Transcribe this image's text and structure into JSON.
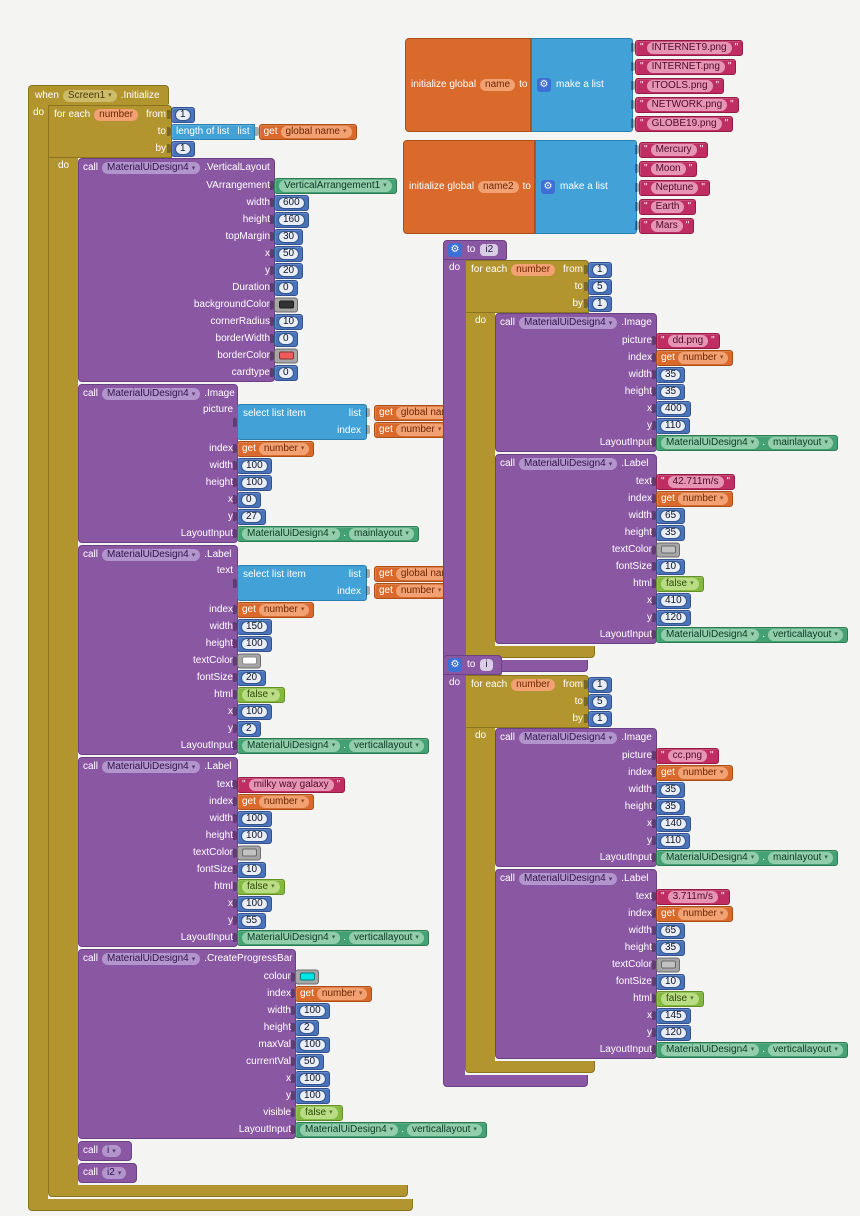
{
  "kw": {
    "when": "when",
    "do": "do",
    "call": "call",
    "to": "to",
    "by": "by",
    "from": "from",
    "for_each": "for each",
    "initialize_global": "initialize global",
    "make_a_list": "make a list",
    "length_of_list": "length of list",
    "list": "list",
    "select_list_item": "select list item",
    "index": "index",
    "get": "get",
    "dot": ".",
    "quote": "\"",
    "gear": "⚙"
  },
  "colors": {
    "gold": "#b2952f",
    "purple": "#8a57a3",
    "lists_blue": "#42a1d7",
    "math_blue": "#4a73bc",
    "text_magenta": "#c02d62",
    "vars_orange": "#d96a2c",
    "logic_green": "#84b940",
    "component_green": "#43a173",
    "gear_blue": "#3d6fd5",
    "swatch_background": "#333333",
    "swatch_border": "#f05c5c",
    "swatch_white": "#ffffff",
    "swatch_gray": "#c2c2c2",
    "swatch_cyan": "#00e5e5"
  },
  "globals": [
    {
      "name": "name",
      "items": [
        "INTERNET9.png",
        "INTERNET.png",
        "ITOOLS.png",
        "NETWORK.png",
        "GLOBE19.png"
      ]
    },
    {
      "name": "name2",
      "items": [
        "Mercury",
        "Moon",
        "Neptune",
        "Earth",
        "Mars"
      ]
    }
  ],
  "when_block": {
    "component": "Screen1",
    "event": ".Initialize",
    "foreach": {
      "var": "number",
      "from": "1",
      "by": "1",
      "to_list_var": "global name"
    }
  },
  "procs": [
    {
      "name": "i2",
      "foreach": {
        "var": "number",
        "from": "1",
        "to": "5",
        "by": "1"
      }
    },
    {
      "name": "i",
      "foreach": {
        "var": "number",
        "from": "1",
        "to": "5",
        "by": "1"
      }
    }
  ],
  "calls": {
    "c1": {
      "component": "MaterialUiDesign4",
      "method": ".VerticalLayout",
      "params": [
        {
          "label": "VArrangement",
          "type": "comp",
          "v": "VerticalArrangement1"
        },
        {
          "label": "width",
          "type": "num",
          "v": "600"
        },
        {
          "label": "height",
          "type": "num",
          "v": "160"
        },
        {
          "label": "topMargin",
          "type": "num",
          "v": "30"
        },
        {
          "label": "x",
          "type": "num",
          "v": "50"
        },
        {
          "label": "y",
          "type": "num",
          "v": "20"
        },
        {
          "label": "Duration",
          "type": "num",
          "v": "0"
        },
        {
          "label": "backgroundColor",
          "type": "swatch",
          "v": "#333333"
        },
        {
          "label": "cornerRadius",
          "type": "num",
          "v": "10"
        },
        {
          "label": "borderWidth",
          "type": "num",
          "v": "0"
        },
        {
          "label": "borderColor",
          "type": "swatch",
          "v": "#f05c5c"
        },
        {
          "label": "cardtype",
          "type": "num",
          "v": "0"
        }
      ]
    },
    "c2": {
      "component": "MaterialUiDesign4",
      "method": ".Image",
      "params": [
        {
          "label": "picture",
          "type": "selectlist",
          "list_var": "global name",
          "index_var": "number"
        },
        {
          "label": "index",
          "type": "get",
          "v": "number"
        },
        {
          "label": "width",
          "type": "num",
          "v": "100"
        },
        {
          "label": "height",
          "type": "num",
          "v": "100"
        },
        {
          "label": "x",
          "type": "num",
          "v": "0"
        },
        {
          "label": "y",
          "type": "num",
          "v": "27"
        },
        {
          "label": "LayoutInput",
          "type": "layout",
          "a": "MaterialUiDesign4",
          "b": "mainlayout"
        }
      ]
    },
    "c3": {
      "component": "MaterialUiDesign4",
      "method": ".Label",
      "params": [
        {
          "label": "text",
          "type": "selectlist",
          "list_var": "global name2",
          "index_var": "number"
        },
        {
          "label": "index",
          "type": "get",
          "v": "number"
        },
        {
          "label": "width",
          "type": "num",
          "v": "150"
        },
        {
          "label": "height",
          "type": "num",
          "v": "100"
        },
        {
          "label": "textColor",
          "type": "swatch",
          "v": "#ffffff"
        },
        {
          "label": "fontSize",
          "type": "num",
          "v": "20"
        },
        {
          "label": "html",
          "type": "logic",
          "v": "false"
        },
        {
          "label": "x",
          "type": "num",
          "v": "100"
        },
        {
          "label": "y",
          "type": "num",
          "v": "2"
        },
        {
          "label": "LayoutInput",
          "type": "layout",
          "a": "MaterialUiDesign4",
          "b": "verticallayout"
        }
      ]
    },
    "c4": {
      "component": "MaterialUiDesign4",
      "method": ".Label",
      "params": [
        {
          "label": "text",
          "type": "str",
          "v": "milky way galaxy"
        },
        {
          "label": "index",
          "type": "get",
          "v": "number"
        },
        {
          "label": "width",
          "type": "num",
          "v": "100"
        },
        {
          "label": "height",
          "type": "num",
          "v": "100"
        },
        {
          "label": "textColor",
          "type": "swatch",
          "v": "#c2c2c2"
        },
        {
          "label": "fontSize",
          "type": "num",
          "v": "10"
        },
        {
          "label": "html",
          "type": "logic",
          "v": "false"
        },
        {
          "label": "x",
          "type": "num",
          "v": "100"
        },
        {
          "label": "y",
          "type": "num",
          "v": "55"
        },
        {
          "label": "LayoutInput",
          "type": "layout",
          "a": "MaterialUiDesign4",
          "b": "verticallayout"
        }
      ]
    },
    "c5": {
      "component": "MaterialUiDesign4",
      "method": ".CreateProgressBar",
      "params": [
        {
          "label": "colour",
          "type": "swatch",
          "v": "#00e5e5"
        },
        {
          "label": "index",
          "type": "get",
          "v": "number"
        },
        {
          "label": "width",
          "type": "num",
          "v": "100"
        },
        {
          "label": "height",
          "type": "num",
          "v": "2"
        },
        {
          "label": "maxVal",
          "type": "num",
          "v": "100"
        },
        {
          "label": "currentVal",
          "type": "num",
          "v": "50"
        },
        {
          "label": "x",
          "type": "num",
          "v": "100"
        },
        {
          "label": "y",
          "type": "num",
          "v": "100"
        },
        {
          "label": "visible",
          "type": "logic",
          "v": "false"
        },
        {
          "label": "LayoutInput",
          "type": "layout",
          "a": "MaterialUiDesign4",
          "b": "verticallayout"
        }
      ]
    },
    "c6": {
      "name": "i"
    },
    "c7": {
      "name": "i2"
    },
    "c8": {
      "component": "MaterialUiDesign4",
      "method": ".Image",
      "params": [
        {
          "label": "picture",
          "type": "str",
          "v": "dd.png"
        },
        {
          "label": "index",
          "type": "get",
          "v": "number"
        },
        {
          "label": "width",
          "type": "num",
          "v": "35"
        },
        {
          "label": "height",
          "type": "num",
          "v": "35"
        },
        {
          "label": "x",
          "type": "num",
          "v": "400"
        },
        {
          "label": "y",
          "type": "num",
          "v": "110"
        },
        {
          "label": "LayoutInput",
          "type": "layout",
          "a": "MaterialUiDesign4",
          "b": "mainlayout"
        }
      ]
    },
    "c9": {
      "component": "MaterialUiDesign4",
      "method": ".Label",
      "params": [
        {
          "label": "text",
          "type": "str",
          "v": "42.711m/s"
        },
        {
          "label": "index",
          "type": "get",
          "v": "number"
        },
        {
          "label": "width",
          "type": "num",
          "v": "65"
        },
        {
          "label": "height",
          "type": "num",
          "v": "35"
        },
        {
          "label": "textColor",
          "type": "swatch",
          "v": "#c2c2c2"
        },
        {
          "label": "fontSize",
          "type": "num",
          "v": "10"
        },
        {
          "label": "html",
          "type": "logic",
          "v": "false"
        },
        {
          "label": "x",
          "type": "num",
          "v": "410"
        },
        {
          "label": "y",
          "type": "num",
          "v": "120"
        },
        {
          "label": "LayoutInput",
          "type": "layout",
          "a": "MaterialUiDesign4",
          "b": "verticallayout"
        }
      ]
    },
    "c10": {
      "component": "MaterialUiDesign4",
      "method": ".Image",
      "params": [
        {
          "label": "picture",
          "type": "str",
          "v": "cc.png"
        },
        {
          "label": "index",
          "type": "get",
          "v": "number"
        },
        {
          "label": "width",
          "type": "num",
          "v": "35"
        },
        {
          "label": "height",
          "type": "num",
          "v": "35"
        },
        {
          "label": "x",
          "type": "num",
          "v": "140"
        },
        {
          "label": "y",
          "type": "num",
          "v": "110"
        },
        {
          "label": "LayoutInput",
          "type": "layout",
          "a": "MaterialUiDesign4",
          "b": "mainlayout"
        }
      ]
    },
    "c11": {
      "component": "MaterialUiDesign4",
      "method": ".Label",
      "params": [
        {
          "label": "text",
          "type": "str",
          "v": "3.711m/s"
        },
        {
          "label": "index",
          "type": "get",
          "v": "number"
        },
        {
          "label": "width",
          "type": "num",
          "v": "65"
        },
        {
          "label": "height",
          "type": "num",
          "v": "35"
        },
        {
          "label": "textColor",
          "type": "swatch",
          "v": "#c2c2c2"
        },
        {
          "label": "fontSize",
          "type": "num",
          "v": "10"
        },
        {
          "label": "html",
          "type": "logic",
          "v": "false"
        },
        {
          "label": "x",
          "type": "num",
          "v": "145"
        },
        {
          "label": "y",
          "type": "num",
          "v": "120"
        },
        {
          "label": "LayoutInput",
          "type": "layout",
          "a": "MaterialUiDesign4",
          "b": "verticallayout"
        }
      ]
    }
  }
}
